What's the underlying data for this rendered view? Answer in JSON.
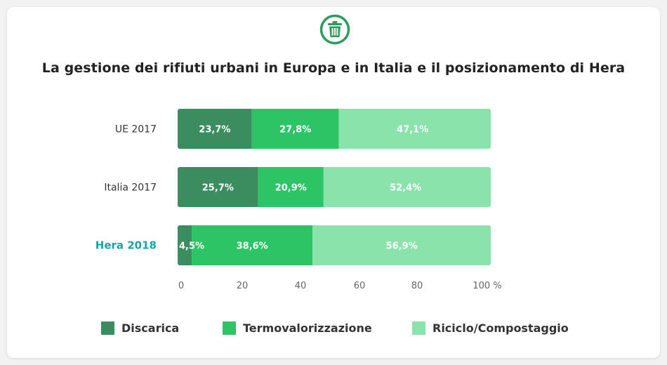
{
  "title": "La gestione dei rifiuti urbani in Europa e in Italia e il posizionamento di Hera",
  "logo_icon": "trash-bin-icon",
  "colors": {
    "discarica": "#3b8c5f",
    "termovalorizzazione": "#2cc465",
    "riciclo": "#8ae3ab",
    "hera_label": "#16a5a5",
    "label": "#333333",
    "logo": "#2e9c5c"
  },
  "chart_data": {
    "type": "bar",
    "orientation": "horizontal",
    "stacked": true,
    "categories": [
      "UE 2017",
      "Italia 2017",
      "Hera 2018"
    ],
    "series": [
      {
        "name": "Discarica",
        "values": [
          23.7,
          25.7,
          4.5
        ],
        "labels": [
          "23,7%",
          "25,7%",
          "4,5%"
        ]
      },
      {
        "name": "Termovalorizzazione",
        "values": [
          27.8,
          20.9,
          38.6
        ],
        "labels": [
          "27,8%",
          "20,9%",
          "38,6%"
        ]
      },
      {
        "name": "Riciclo/Compostaggio",
        "values": [
          47.1,
          52.4,
          56.9
        ],
        "labels": [
          "47,1%",
          "52,4%",
          "56,9%"
        ]
      }
    ],
    "title": "La gestione dei rifiuti urbani in Europa e in Italia e il posizionamento di Hera",
    "xlim": [
      0,
      100
    ],
    "xticks": [
      "0",
      "20",
      "40",
      "60",
      "80",
      "100 %"
    ],
    "grid": false,
    "legend_position": "bottom"
  }
}
